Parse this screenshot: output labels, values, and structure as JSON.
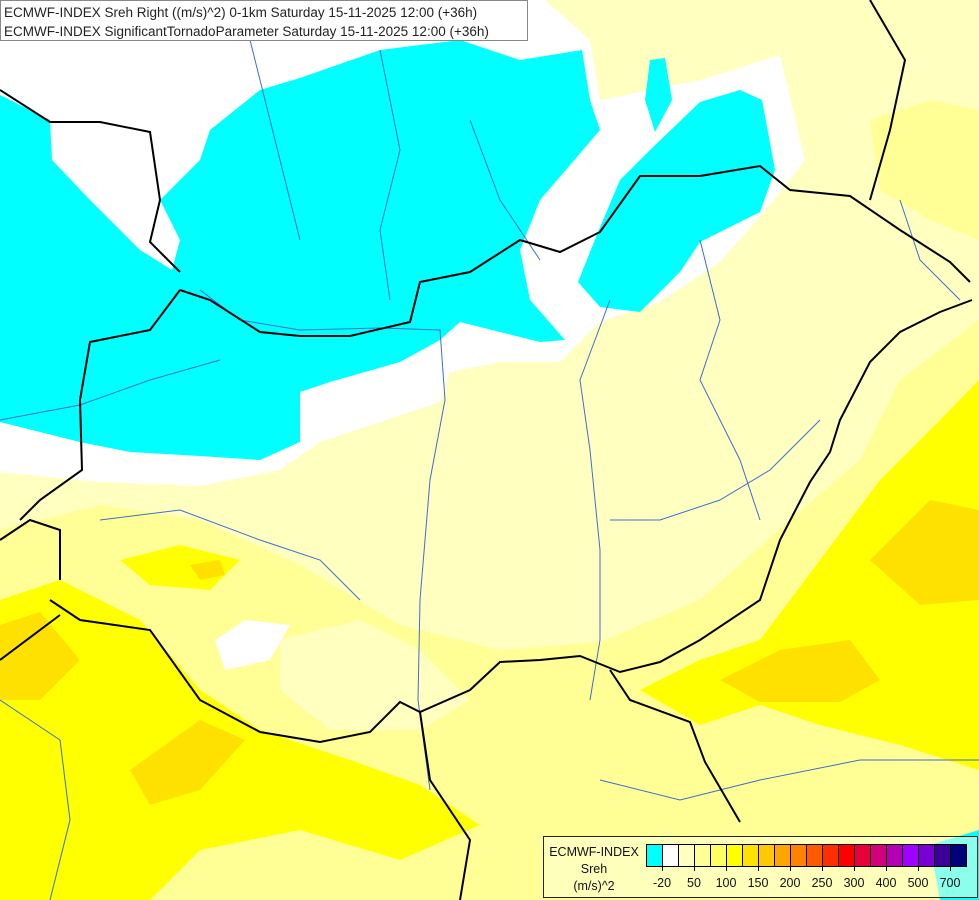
{
  "title": {
    "line1": "ECMWF-INDEX Sreh Right ((m/s)^2) 0-1km Saturday 15-11-2025 12:00 (+36h)",
    "line2": "ECMWF-INDEX SignificantTornadoParameter Saturday 15-11-2025 12:00 (+36h)"
  },
  "legend": {
    "line1": "ECMWF-INDEX",
    "line2": "Sreh",
    "line3": "(m/s)^2",
    "colors": [
      "#00ffff",
      "#ffffff",
      "#ffffc0",
      "#ffff96",
      "#ffff64",
      "#ffff00",
      "#ffe100",
      "#ffc800",
      "#ffa500",
      "#ff8200",
      "#ff5a00",
      "#ff2d00",
      "#ff0000",
      "#e6003c",
      "#d2007d",
      "#b400b4",
      "#a000ff",
      "#7800d2",
      "#3c0096",
      "#000078"
    ],
    "labels": [
      "-20",
      "50",
      "100",
      "150",
      "200",
      "250",
      "300",
      "400",
      "500",
      "700"
    ]
  },
  "map_colors": {
    "cyan": "#00ffff",
    "white": "#ffffff",
    "pale": "#ffffc0",
    "light_yellow": "#ffff96",
    "yellow": "#ffff00",
    "gold": "#ffe100",
    "border": "#000000",
    "river": "#3a6fd0"
  }
}
